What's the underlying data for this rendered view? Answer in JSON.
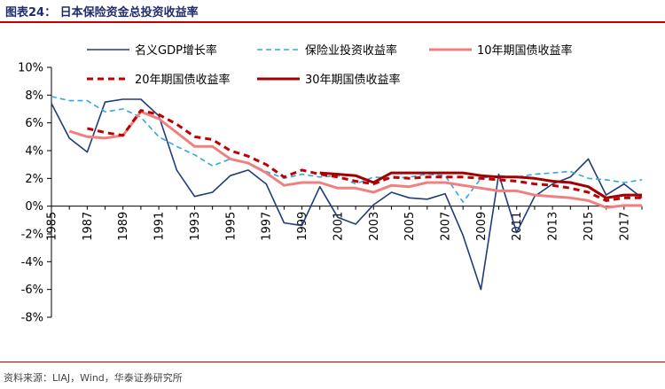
{
  "title": "图表24：  日本保险资金总投资收益率",
  "source": "资料来源：LIAJ，Wind，华泰证券研究所",
  "chart_data": {
    "type": "line",
    "title": "日本保险资金总投资收益率",
    "xlabel": "",
    "ylabel": "",
    "ylim": [
      -8,
      10
    ],
    "yticks": [
      "10%",
      "8%",
      "6%",
      "4%",
      "2%",
      "0%",
      "-2%",
      "-4%",
      "-6%",
      "-8%"
    ],
    "yticks_values": [
      10,
      8,
      6,
      4,
      2,
      0,
      -2,
      -4,
      -6,
      -8
    ],
    "xlim": [
      1985,
      2018
    ],
    "xticks": [
      "1985",
      "1987",
      "1989",
      "1991",
      "1993",
      "1995",
      "1997",
      "1999",
      "2001",
      "2003",
      "2005",
      "2007",
      "2009",
      "2011",
      "2013",
      "2015",
      "2017"
    ],
    "grid": false,
    "legend_position": "top",
    "series": [
      {
        "name": "名义GDP增长率",
        "color": "#1f3d7a",
        "dash": "solid",
        "width": 1.6,
        "x": [
          1985,
          1986,
          1987,
          1988,
          1989,
          1990,
          1991,
          1992,
          1993,
          1994,
          1995,
          1996,
          1997,
          1998,
          1999,
          2000,
          2001,
          2002,
          2003,
          2004,
          2005,
          2006,
          2007,
          2008,
          2009,
          2010,
          2011,
          2012,
          2013,
          2014,
          2015,
          2016,
          2017,
          2018
        ],
        "values": [
          7.4,
          4.9,
          3.9,
          7.5,
          7.7,
          7.7,
          6.5,
          2.6,
          0.7,
          1.0,
          2.2,
          2.6,
          1.6,
          -1.2,
          -1.4,
          1.4,
          -0.8,
          -1.3,
          0.1,
          1.0,
          0.6,
          0.5,
          0.9,
          -2.1,
          -6.0,
          2.3,
          -1.9,
          0.7,
          1.6,
          2.1,
          3.4,
          0.8,
          1.6,
          0.6
        ]
      },
      {
        "name": "保险业投资收益率",
        "color": "#2eaadc",
        "dash": "6,4",
        "width": 1.6,
        "x": [
          1985,
          1986,
          1987,
          1988,
          1989,
          1990,
          1991,
          1992,
          1993,
          1994,
          1995,
          1996,
          1997,
          1998,
          1999,
          2000,
          2001,
          2002,
          2003,
          2004,
          2005,
          2006,
          2007,
          2008,
          2009,
          2010,
          2011,
          2012,
          2013,
          2014,
          2015,
          2016,
          2017,
          2018
        ],
        "values": [
          7.9,
          7.6,
          7.6,
          6.8,
          7.0,
          6.4,
          5.0,
          4.3,
          3.7,
          2.9,
          3.4,
          3.1,
          2.5,
          2.0,
          2.3,
          2.1,
          2.2,
          1.6,
          2.1,
          2.0,
          2.1,
          2.3,
          2.2,
          0.3,
          2.0,
          2.2,
          2.1,
          2.3,
          2.4,
          2.5,
          2.0,
          1.9,
          1.7,
          1.9
        ]
      },
      {
        "name": "10年期国债收益率",
        "color": "#f08080",
        "dash": "solid",
        "width": 3,
        "x": [
          1986,
          1987,
          1988,
          1989,
          1990,
          1991,
          1992,
          1993,
          1994,
          1995,
          1996,
          1997,
          1998,
          1999,
          2000,
          2001,
          2002,
          2003,
          2004,
          2005,
          2006,
          2007,
          2008,
          2009,
          2010,
          2011,
          2012,
          2013,
          2014,
          2015,
          2016,
          2017,
          2018
        ],
        "values": [
          5.4,
          5.0,
          4.9,
          5.1,
          6.8,
          6.3,
          5.3,
          4.3,
          4.3,
          3.4,
          3.1,
          2.4,
          1.5,
          1.7,
          1.7,
          1.3,
          1.3,
          1.0,
          1.5,
          1.4,
          1.7,
          1.7,
          1.5,
          1.3,
          1.1,
          1.1,
          0.8,
          0.7,
          0.6,
          0.4,
          -0.1,
          0.05,
          0.05
        ]
      },
      {
        "name": "20年期国债收益率",
        "color": "#c00000",
        "dash": "7,5",
        "width": 3,
        "x": [
          1987,
          1988,
          1989,
          1990,
          1991,
          1992,
          1993,
          1994,
          1995,
          1996,
          1997,
          1998,
          1999,
          2000,
          2001,
          2002,
          2003,
          2004,
          2005,
          2006,
          2007,
          2008,
          2009,
          2010,
          2011,
          2012,
          2013,
          2014,
          2015,
          2016,
          2017,
          2018
        ],
        "values": [
          5.6,
          5.3,
          5.1,
          6.9,
          6.6,
          5.9,
          5.0,
          4.8,
          4.0,
          3.6,
          3.0,
          2.1,
          2.6,
          2.3,
          2.1,
          1.8,
          1.6,
          2.1,
          2.0,
          2.1,
          2.1,
          2.1,
          2.0,
          1.9,
          1.8,
          1.6,
          1.5,
          1.3,
          1.0,
          0.4,
          0.6,
          0.6
        ]
      },
      {
        "name": "30年期国债收益率",
        "color": "#a00000",
        "dash": "solid",
        "width": 3,
        "x": [
          2000,
          2001,
          2002,
          2003,
          2004,
          2005,
          2006,
          2007,
          2008,
          2009,
          2010,
          2011,
          2012,
          2013,
          2014,
          2015,
          2016,
          2017,
          2018
        ],
        "values": [
          2.4,
          2.3,
          2.2,
          1.7,
          2.4,
          2.4,
          2.4,
          2.4,
          2.4,
          2.2,
          2.1,
          2.1,
          2.0,
          1.8,
          1.7,
          1.4,
          0.6,
          0.8,
          0.8
        ]
      }
    ]
  }
}
